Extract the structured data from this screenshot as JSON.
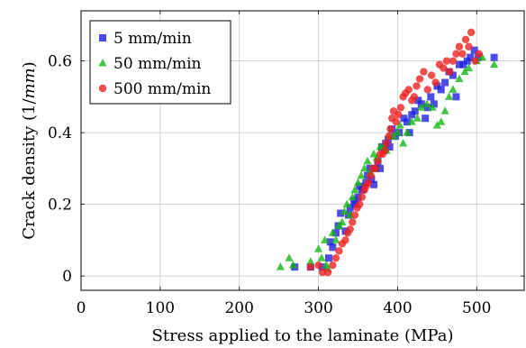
{
  "chart_data": {
    "type": "scatter",
    "title": "",
    "xlabel": "Stress applied to the laminate (MPa)",
    "ylabel": "Crack density (1/mm)",
    "ylabel_parts": [
      "Crack density (1/",
      "mm",
      ")"
    ],
    "xlim": [
      0,
      560
    ],
    "ylim": [
      -0.04,
      0.74
    ],
    "x_ticks": [
      0,
      100,
      200,
      300,
      400,
      500
    ],
    "x_tick_labels": [
      "0",
      "100",
      "200",
      "300",
      "400",
      "500"
    ],
    "y_ticks": [
      0,
      0.2,
      0.4,
      0.6
    ],
    "y_tick_labels": [
      "0",
      "0.2",
      "0.4",
      "0.6"
    ],
    "grid": true,
    "legend_position": "top-left",
    "series": [
      {
        "name": "5 mm/min",
        "marker": "square",
        "color": "#1f1fe0",
        "points": [
          [
            270,
            0.025
          ],
          [
            290,
            0.025
          ],
          [
            305,
            0.025
          ],
          [
            313,
            0.05
          ],
          [
            318,
            0.08
          ],
          [
            322,
            0.12
          ],
          [
            315,
            0.095
          ],
          [
            325,
            0.14
          ],
          [
            328,
            0.175
          ],
          [
            334,
            0.125
          ],
          [
            338,
            0.17
          ],
          [
            340,
            0.19
          ],
          [
            345,
            0.21
          ],
          [
            347,
            0.2
          ],
          [
            350,
            0.22
          ],
          [
            352,
            0.25
          ],
          [
            355,
            0.24
          ],
          [
            357,
            0.245
          ],
          [
            360,
            0.26
          ],
          [
            362,
            0.28
          ],
          [
            365,
            0.3
          ],
          [
            367,
            0.27
          ],
          [
            370,
            0.255
          ],
          [
            372,
            0.3
          ],
          [
            375,
            0.32
          ],
          [
            378,
            0.3
          ],
          [
            380,
            0.36
          ],
          [
            383,
            0.35
          ],
          [
            385,
            0.37
          ],
          [
            388,
            0.38
          ],
          [
            390,
            0.36
          ],
          [
            393,
            0.41
          ],
          [
            397,
            0.39
          ],
          [
            402,
            0.4
          ],
          [
            408,
            0.44
          ],
          [
            412,
            0.43
          ],
          [
            415,
            0.4
          ],
          [
            418,
            0.45
          ],
          [
            422,
            0.46
          ],
          [
            426,
            0.49
          ],
          [
            430,
            0.48
          ],
          [
            435,
            0.44
          ],
          [
            438,
            0.47
          ],
          [
            442,
            0.5
          ],
          [
            446,
            0.48
          ],
          [
            450,
            0.53
          ],
          [
            455,
            0.52
          ],
          [
            460,
            0.54
          ],
          [
            465,
            0.57
          ],
          [
            470,
            0.56
          ],
          [
            474,
            0.5
          ],
          [
            478,
            0.59
          ],
          [
            483,
            0.59
          ],
          [
            488,
            0.6
          ],
          [
            492,
            0.61
          ],
          [
            497,
            0.63
          ],
          [
            502,
            0.61
          ],
          [
            522,
            0.61
          ]
        ]
      },
      {
        "name": "50 mm/min",
        "marker": "triangle",
        "color": "#14b814",
        "points": [
          [
            252,
            0.025
          ],
          [
            263,
            0.05
          ],
          [
            268,
            0.03
          ],
          [
            290,
            0.04
          ],
          [
            300,
            0.075
          ],
          [
            304,
            0.05
          ],
          [
            308,
            0.1
          ],
          [
            310,
            0.03
          ],
          [
            312,
            0.02
          ],
          [
            318,
            0.12
          ],
          [
            322,
            0.1
          ],
          [
            326,
            0.14
          ],
          [
            330,
            0.15
          ],
          [
            333,
            0.18
          ],
          [
            336,
            0.2
          ],
          [
            340,
            0.17
          ],
          [
            343,
            0.22
          ],
          [
            346,
            0.24
          ],
          [
            350,
            0.26
          ],
          [
            354,
            0.28
          ],
          [
            358,
            0.3
          ],
          [
            362,
            0.32
          ],
          [
            366,
            0.29
          ],
          [
            370,
            0.34
          ],
          [
            374,
            0.33
          ],
          [
            378,
            0.36
          ],
          [
            382,
            0.36
          ],
          [
            386,
            0.35
          ],
          [
            390,
            0.39
          ],
          [
            395,
            0.39
          ],
          [
            400,
            0.4
          ],
          [
            403,
            0.42
          ],
          [
            407,
            0.37
          ],
          [
            412,
            0.4
          ],
          [
            418,
            0.43
          ],
          [
            425,
            0.44
          ],
          [
            430,
            0.47
          ],
          [
            437,
            0.48
          ],
          [
            444,
            0.47
          ],
          [
            450,
            0.42
          ],
          [
            455,
            0.43
          ],
          [
            460,
            0.46
          ],
          [
            465,
            0.5
          ],
          [
            470,
            0.52
          ],
          [
            478,
            0.55
          ],
          [
            485,
            0.57
          ],
          [
            490,
            0.58
          ],
          [
            500,
            0.6
          ],
          [
            507,
            0.61
          ],
          [
            522,
            0.59
          ]
        ]
      },
      {
        "name": "500 mm/min",
        "marker": "circle",
        "color": "#ee2222",
        "points": [
          [
            290,
            0.025
          ],
          [
            300,
            0.03
          ],
          [
            305,
            0.01
          ],
          [
            312,
            0.01
          ],
          [
            318,
            0.03
          ],
          [
            322,
            0.05
          ],
          [
            326,
            0.07
          ],
          [
            330,
            0.09
          ],
          [
            334,
            0.1
          ],
          [
            337,
            0.12
          ],
          [
            340,
            0.13
          ],
          [
            343,
            0.15
          ],
          [
            346,
            0.17
          ],
          [
            349,
            0.19
          ],
          [
            352,
            0.2
          ],
          [
            355,
            0.22
          ],
          [
            358,
            0.24
          ],
          [
            360,
            0.25
          ],
          [
            363,
            0.26
          ],
          [
            366,
            0.28
          ],
          [
            369,
            0.3
          ],
          [
            372,
            0.3
          ],
          [
            375,
            0.32
          ],
          [
            378,
            0.34
          ],
          [
            381,
            0.34
          ],
          [
            384,
            0.35
          ],
          [
            386,
            0.37
          ],
          [
            389,
            0.39
          ],
          [
            391,
            0.41
          ],
          [
            393,
            0.44
          ],
          [
            395,
            0.46
          ],
          [
            398,
            0.43
          ],
          [
            401,
            0.45
          ],
          [
            404,
            0.47
          ],
          [
            407,
            0.5
          ],
          [
            410,
            0.51
          ],
          [
            414,
            0.52
          ],
          [
            418,
            0.49
          ],
          [
            421,
            0.5
          ],
          [
            424,
            0.53
          ],
          [
            428,
            0.55
          ],
          [
            433,
            0.57
          ],
          [
            438,
            0.52
          ],
          [
            443,
            0.56
          ],
          [
            448,
            0.54
          ],
          [
            453,
            0.59
          ],
          [
            458,
            0.58
          ],
          [
            462,
            0.6
          ],
          [
            466,
            0.57
          ],
          [
            470,
            0.6
          ],
          [
            474,
            0.62
          ],
          [
            478,
            0.64
          ],
          [
            482,
            0.62
          ],
          [
            486,
            0.66
          ],
          [
            490,
            0.64
          ],
          [
            493,
            0.68
          ],
          [
            498,
            0.6
          ],
          [
            503,
            0.62
          ]
        ]
      }
    ]
  }
}
